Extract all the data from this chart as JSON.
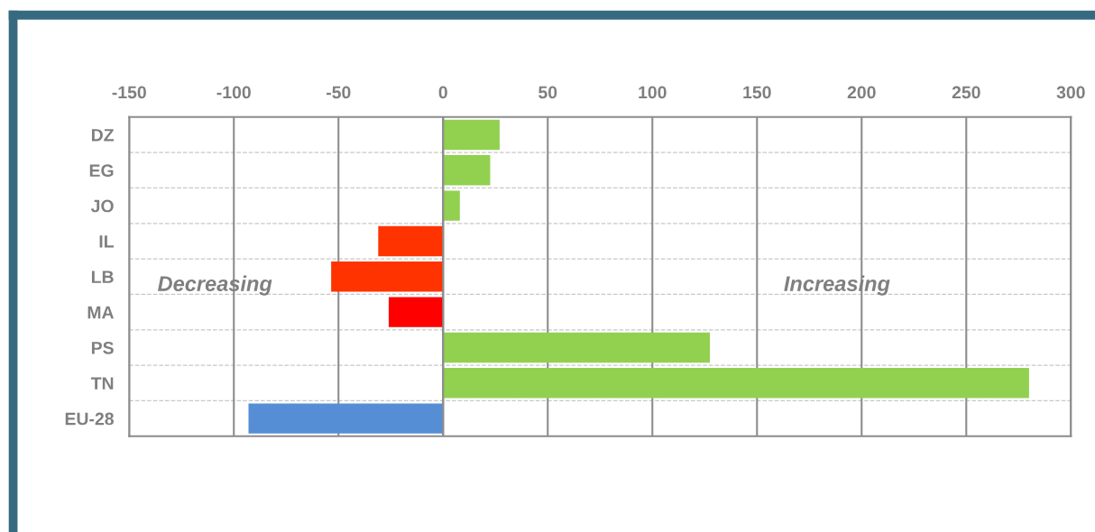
{
  "chart_data": {
    "type": "bar",
    "orientation": "horizontal",
    "categories": [
      "DZ",
      "EG",
      "JO",
      "IL",
      "LB",
      "MA",
      "PS",
      "TN",
      "EU-28"
    ],
    "values": [
      27,
      22.5,
      8,
      -31,
      -53.5,
      -26,
      127.5,
      280,
      -93
    ],
    "colors": [
      "#92d050",
      "#92d050",
      "#92d050",
      "#ff3300",
      "#ff3300",
      "#ff0000",
      "#92d050",
      "#92d050",
      "#558ed5"
    ],
    "xlim": [
      -150,
      300
    ],
    "xticks": [
      -150,
      -100,
      -50,
      0,
      50,
      100,
      150,
      200,
      250,
      300
    ],
    "grid": "x",
    "annotations": [
      "Decreasing",
      "Increasing"
    ]
  }
}
